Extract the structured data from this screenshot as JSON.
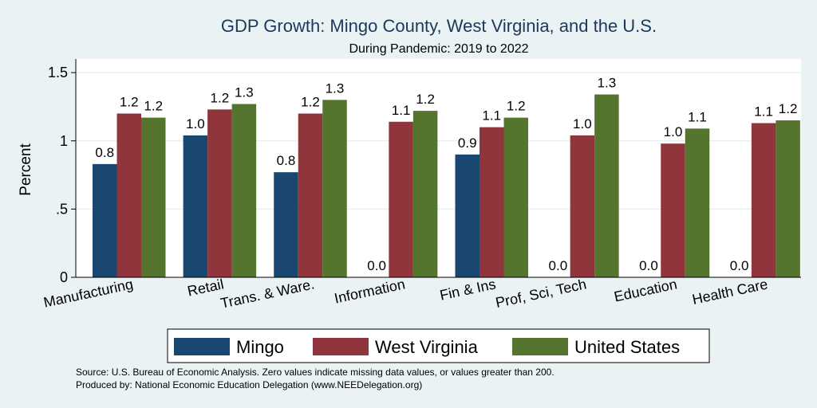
{
  "chart_data": {
    "type": "bar",
    "title": "GDP Growth: Mingo County, West Virginia, and the U.S.",
    "subtitle": "During Pandemic: 2019 to 2022",
    "ylabel": "Percent",
    "xlabel": "",
    "ylim": [
      0,
      1.6
    ],
    "yticks": [
      0,
      0.5,
      1,
      1.5
    ],
    "ytick_labels": [
      "0",
      ".5",
      "1",
      "1.5"
    ],
    "grid": true,
    "legend_position": "bottom",
    "categories": [
      "Manufacturing",
      "Retail",
      "Trans. & Ware.",
      "Information",
      "Fin & Ins",
      "Prof, Sci, Tech",
      "Education",
      "Health Care"
    ],
    "series": [
      {
        "name": "Mingo",
        "color": "#1a476f",
        "values": [
          0.83,
          1.04,
          0.77,
          0.0,
          0.9,
          0.0,
          0.0,
          0.0
        ],
        "labels": [
          "0.8",
          "1.0",
          "0.8",
          "0.0",
          "0.9",
          "0.0",
          "0.0",
          "0.0"
        ]
      },
      {
        "name": "West Virginia",
        "color": "#90353b",
        "values": [
          1.2,
          1.23,
          1.2,
          1.14,
          1.1,
          1.04,
          0.98,
          1.13
        ],
        "labels": [
          "1.2",
          "1.2",
          "1.2",
          "1.1",
          "1.1",
          "1.0",
          "1.0",
          "1.1"
        ]
      },
      {
        "name": "United States",
        "color": "#55752f",
        "values": [
          1.17,
          1.27,
          1.3,
          1.22,
          1.17,
          1.34,
          1.09,
          1.15
        ],
        "labels": [
          "1.2",
          "1.3",
          "1.3",
          "1.2",
          "1.2",
          "1.3",
          "1.1",
          "1.2"
        ]
      }
    ],
    "notes": [
      "Source: U.S. Bureau of Economic Analysis. Zero values indicate missing data values, or values greater than 200.",
      "Produced by: National Economic Education Delegation (www.NEEDelegation.org)"
    ]
  }
}
